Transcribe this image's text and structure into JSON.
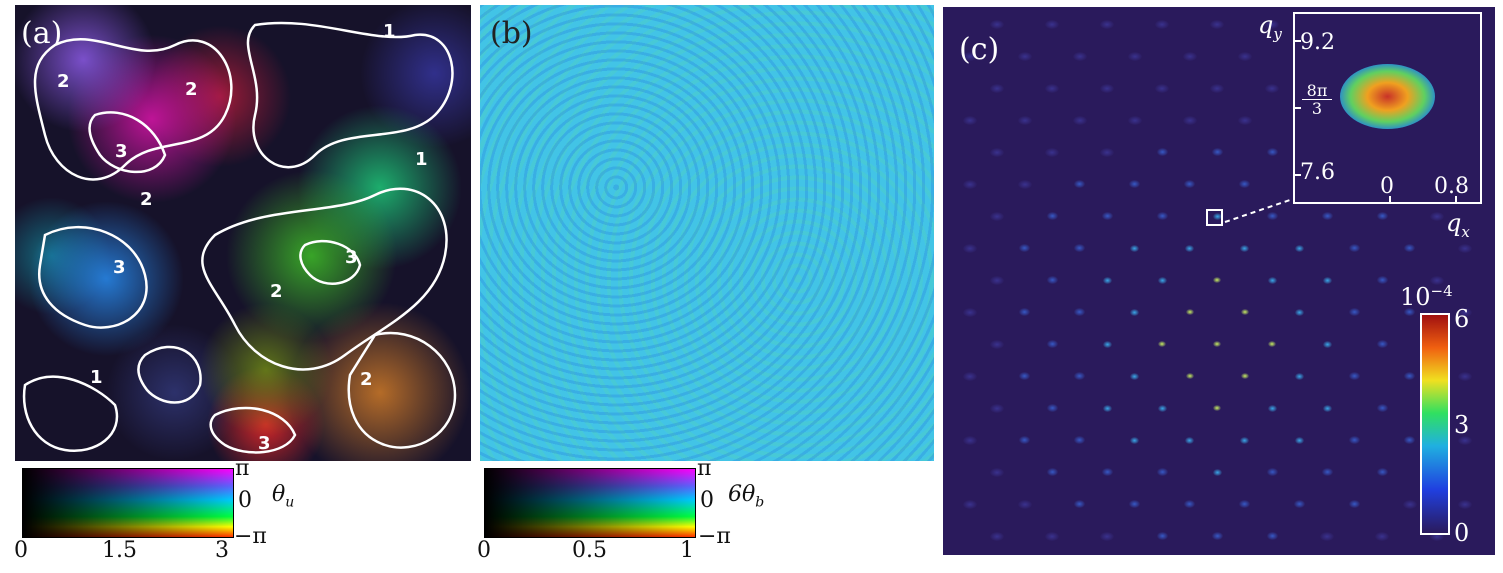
{
  "panel_a": {
    "label": "(a)",
    "contour_levels": [
      "1",
      "2",
      "3"
    ],
    "colormap": {
      "angle_label": "θ",
      "angle_subscript": "u",
      "right_ticks": [
        "π",
        "0",
        "−π"
      ],
      "bottom_ticks": [
        "0",
        "1.5",
        "3"
      ]
    }
  },
  "panel_b": {
    "label": "(b)",
    "colormap": {
      "angle_label": "6θ",
      "angle_subscript": "b",
      "right_ticks": [
        "π",
        "0",
        "−π"
      ],
      "bottom_ticks": [
        "0",
        "0.5",
        "1"
      ]
    }
  },
  "panel_c": {
    "label": "(c)",
    "inset": {
      "ylabel_base": "q",
      "ylabel_sub": "y",
      "xlabel_base": "q",
      "xlabel_sub": "x",
      "y_ticks": [
        "9.2",
        "7.6"
      ],
      "y_tick_frac_num": "8π",
      "y_tick_frac_den": "3",
      "x_ticks": [
        "0",
        "0.8"
      ]
    },
    "colorbar": {
      "exponent_base": "10",
      "exponent": "−4",
      "ticks": [
        "6",
        "3",
        "0"
      ]
    }
  },
  "colors": {
    "panel_c_background": "#2a1a5c",
    "panel_b_base": "#42c4e6"
  }
}
